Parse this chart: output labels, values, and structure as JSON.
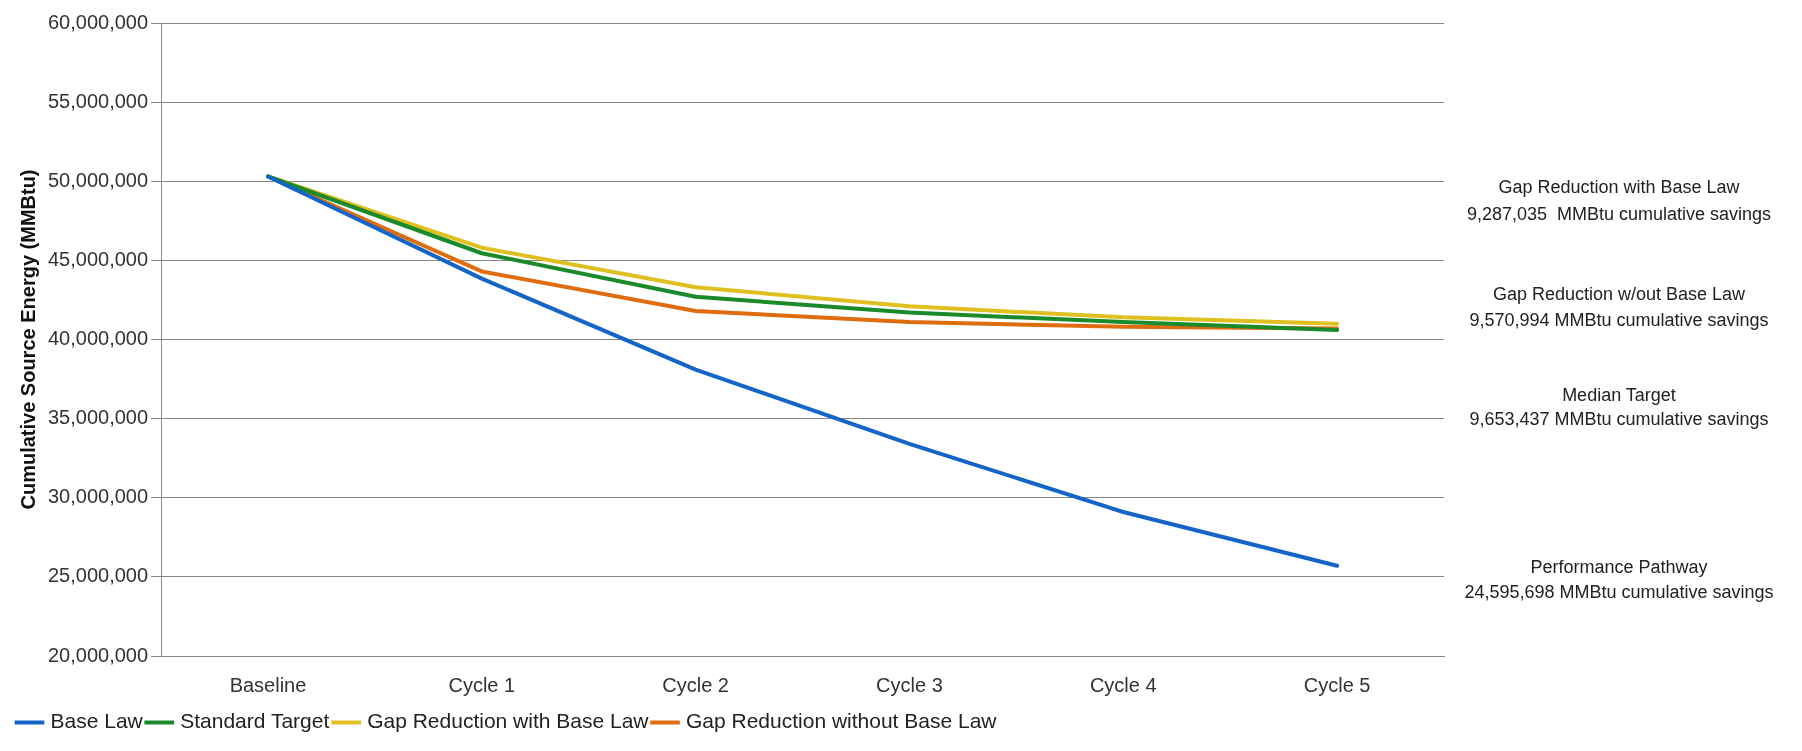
{
  "chart_data": {
    "type": "line",
    "ylabel": "Cumulative Source Energy (MMBtu)",
    "categories": [
      "Baseline",
      "Cycle 1",
      "Cycle 2",
      "Cycle 3",
      "Cycle 4",
      "Cycle 5"
    ],
    "series": [
      {
        "name": "Base Law",
        "color": "#1565c8",
        "values": [
          50300000,
          43850000,
          38100000,
          33400000,
          29100000,
          25700000
        ]
      },
      {
        "name": "Standard Target",
        "color": "#1a8a2a",
        "values": [
          50300000,
          45450000,
          42700000,
          41700000,
          41100000,
          40600000
        ]
      },
      {
        "name": "Gap Reduction with Base Law",
        "color": "#e0c020",
        "values": [
          50300000,
          45800000,
          43300000,
          42100000,
          41400000,
          41000000
        ]
      },
      {
        "name": "Gap Reduction without Base Law",
        "color": "#e06c10",
        "values": [
          50300000,
          44300000,
          41800000,
          41100000,
          40800000,
          40700000
        ]
      }
    ],
    "ylim": [
      20000000,
      60000000
    ],
    "yticks": [
      {
        "value": 20000000,
        "label": "20,000,000"
      },
      {
        "value": 25000000,
        "label": "25,000,000"
      },
      {
        "value": 30000000,
        "label": "30,000,000"
      },
      {
        "value": 35000000,
        "label": "35,000,000"
      },
      {
        "value": 40000000,
        "label": "40,000,000"
      },
      {
        "value": 45000000,
        "label": "45,000,000"
      },
      {
        "value": 50000000,
        "label": "50,000,000"
      },
      {
        "value": 55000000,
        "label": "55,000,000"
      },
      {
        "value": 60000000,
        "label": "60,000,000"
      }
    ],
    "grid": "y",
    "legend": "bottom",
    "marker": "none",
    "line_style": "solid",
    "annotations": [
      "Gap Reduction with Base Law",
      "9,287,035  MMBtu cumulative savings",
      "Gap Reduction w/out Base Law",
      "9,570,994 MMBtu cumulative savings",
      "Median Target",
      "9,653,437 MMBtu cumulative savings",
      "Performance Pathway",
      "24,595,698 MMBtu cumulative savings"
    ]
  }
}
